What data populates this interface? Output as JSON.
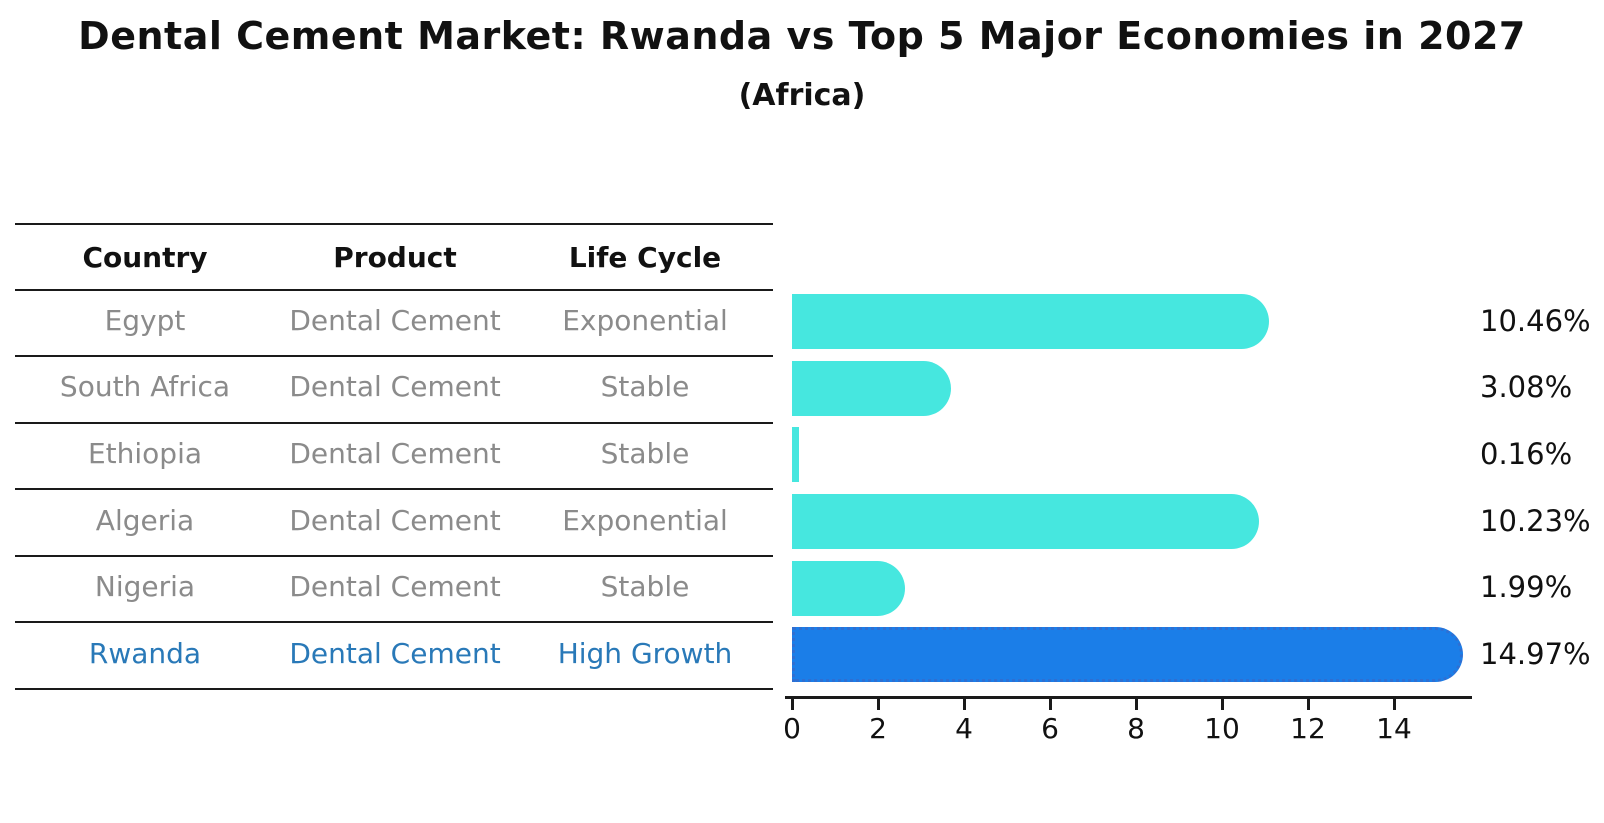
{
  "title": "Dental Cement Market: Rwanda vs Top 5 Major Economies in 2027",
  "subtitle": "(Africa)",
  "table": {
    "headers": [
      "Country",
      "Product",
      "Life Cycle"
    ]
  },
  "chart_data": {
    "type": "bar",
    "orientation": "horizontal",
    "title": "Dental Cement Market: Rwanda vs Top 5 Major Economies in 2027",
    "subtitle": "(Africa)",
    "xlabel": "",
    "ylabel": "",
    "xlim": [
      0,
      15.8
    ],
    "x_ticks": [
      0,
      2,
      4,
      6,
      8,
      10,
      12,
      14
    ],
    "grid": false,
    "legend": "none",
    "colors": {
      "bar_default": "#46e7df",
      "bar_highlight": "#1b7ee8",
      "bar_highlight_border": "#2f6fd2",
      "highlight_text": "#2979b8",
      "row_text": "#8b8b8b",
      "axis_text": "#111111"
    },
    "rows": [
      {
        "country": "Egypt",
        "product": "Dental Cement",
        "life_cycle": "Exponential",
        "value": 10.46,
        "label": "10.46%",
        "highlight": false
      },
      {
        "country": "South Africa",
        "product": "Dental Cement",
        "life_cycle": "Stable",
        "value": 3.08,
        "label": "3.08%",
        "highlight": false
      },
      {
        "country": "Ethiopia",
        "product": "Dental Cement",
        "life_cycle": "Stable",
        "value": 0.16,
        "label": "0.16%",
        "highlight": false
      },
      {
        "country": "Algeria",
        "product": "Dental Cement",
        "life_cycle": "Exponential",
        "value": 10.23,
        "label": "10.23%",
        "highlight": false
      },
      {
        "country": "Nigeria",
        "product": "Dental Cement",
        "life_cycle": "Stable",
        "value": 1.99,
        "label": "1.99%",
        "highlight": false
      },
      {
        "country": "Rwanda",
        "product": "Dental Cement",
        "life_cycle": "High Growth",
        "value": 14.97,
        "label": "14.97%",
        "highlight": true
      }
    ]
  }
}
